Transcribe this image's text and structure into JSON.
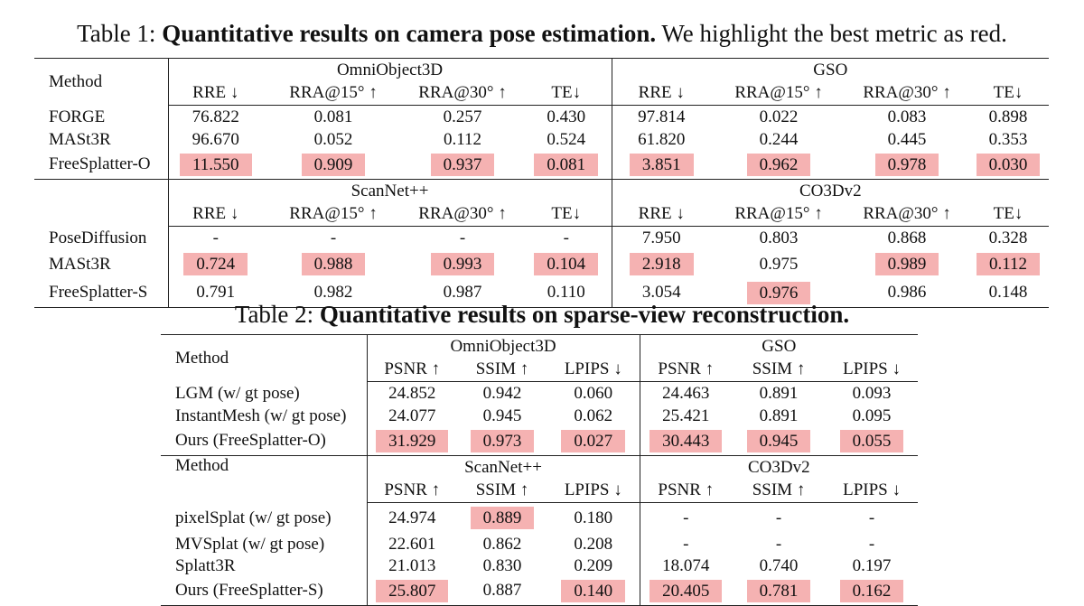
{
  "table1": {
    "caption_prefix": "Table 1:",
    "caption_bold": "Quantitative results on camera pose estimation.",
    "caption_rest": "We highlight the best metric as red.",
    "method_label": "Method",
    "section_a": {
      "dataset_left": "OmniObject3D",
      "dataset_right": "GSO",
      "metrics": [
        "RRE ↓",
        "RRA@15° ↑",
        "RRA@30° ↑",
        "TE↓"
      ],
      "rows": [
        {
          "method": "FORGE",
          "values": [
            "76.822",
            "0.081",
            "0.257",
            "0.430",
            "97.814",
            "0.022",
            "0.083",
            "0.898"
          ],
          "best": [
            false,
            false,
            false,
            false,
            false,
            false,
            false,
            false
          ]
        },
        {
          "method": "MASt3R",
          "values": [
            "96.670",
            "0.052",
            "0.112",
            "0.524",
            "61.820",
            "0.244",
            "0.445",
            "0.353"
          ],
          "best": [
            false,
            false,
            false,
            false,
            false,
            false,
            false,
            false
          ]
        },
        {
          "method": "FreeSplatter-O",
          "values": [
            "11.550",
            "0.909",
            "0.937",
            "0.081",
            "3.851",
            "0.962",
            "0.978",
            "0.030"
          ],
          "best": [
            true,
            true,
            true,
            true,
            true,
            true,
            true,
            true
          ]
        }
      ]
    },
    "section_b": {
      "dataset_left": "ScanNet++",
      "dataset_right": "CO3Dv2",
      "metrics": [
        "RRE ↓",
        "RRA@15° ↑",
        "RRA@30° ↑",
        "TE↓"
      ],
      "rows": [
        {
          "method": "PoseDiffusion",
          "values": [
            "-",
            "-",
            "-",
            "-",
            "7.950",
            "0.803",
            "0.868",
            "0.328"
          ],
          "best": [
            false,
            false,
            false,
            false,
            false,
            false,
            false,
            false
          ]
        },
        {
          "method": "MASt3R",
          "values": [
            "0.724",
            "0.988",
            "0.993",
            "0.104",
            "2.918",
            "0.975",
            "0.989",
            "0.112"
          ],
          "best": [
            true,
            true,
            true,
            true,
            true,
            false,
            true,
            true
          ]
        },
        {
          "method": "FreeSplatter-S",
          "values": [
            "0.791",
            "0.982",
            "0.987",
            "0.110",
            "3.054",
            "0.976",
            "0.986",
            "0.148"
          ],
          "best": [
            false,
            false,
            false,
            false,
            false,
            true,
            false,
            false
          ]
        }
      ]
    }
  },
  "table2": {
    "caption_prefix": "Table 2:",
    "caption_bold": "Quantitative results on sparse-view reconstruction.",
    "method_label": "Method",
    "section_a": {
      "dataset_left": "OmniObject3D",
      "dataset_right": "GSO",
      "metrics": [
        "PSNR ↑",
        "SSIM ↑",
        "LPIPS ↓"
      ],
      "rows": [
        {
          "method": "LGM (w/ gt pose)",
          "values": [
            "24.852",
            "0.942",
            "0.060",
            "24.463",
            "0.891",
            "0.093"
          ],
          "best": [
            false,
            false,
            false,
            false,
            false,
            false
          ]
        },
        {
          "method": "InstantMesh (w/ gt pose)",
          "values": [
            "24.077",
            "0.945",
            "0.062",
            "25.421",
            "0.891",
            "0.095"
          ],
          "best": [
            false,
            false,
            false,
            false,
            false,
            false
          ]
        },
        {
          "method": "Ours (FreeSplatter-O)",
          "values": [
            "31.929",
            "0.973",
            "0.027",
            "30.443",
            "0.945",
            "0.055"
          ],
          "best": [
            true,
            true,
            true,
            true,
            true,
            true
          ]
        }
      ]
    },
    "section_b": {
      "dataset_left": "ScanNet++",
      "dataset_right": "CO3Dv2",
      "metrics": [
        "PSNR ↑",
        "SSIM ↑",
        "LPIPS ↓"
      ],
      "rows": [
        {
          "method": "pixelSplat (w/ gt pose)",
          "values": [
            "24.974",
            "0.889",
            "0.180",
            "-",
            "-",
            "-"
          ],
          "best": [
            false,
            true,
            false,
            false,
            false,
            false
          ]
        },
        {
          "method": "MVSplat (w/ gt pose)",
          "values": [
            "22.601",
            "0.862",
            "0.208",
            "-",
            "-",
            "-"
          ],
          "best": [
            false,
            false,
            false,
            false,
            false,
            false
          ]
        },
        {
          "method": "Splatt3R",
          "values": [
            "21.013",
            "0.830",
            "0.209",
            "18.074",
            "0.740",
            "0.197"
          ],
          "best": [
            false,
            false,
            false,
            false,
            false,
            false
          ]
        },
        {
          "method": "Ours (FreeSplatter-S)",
          "values": [
            "25.807",
            "0.887",
            "0.140",
            "20.405",
            "0.781",
            "0.162"
          ],
          "best": [
            true,
            false,
            true,
            true,
            true,
            true
          ]
        }
      ]
    }
  }
}
